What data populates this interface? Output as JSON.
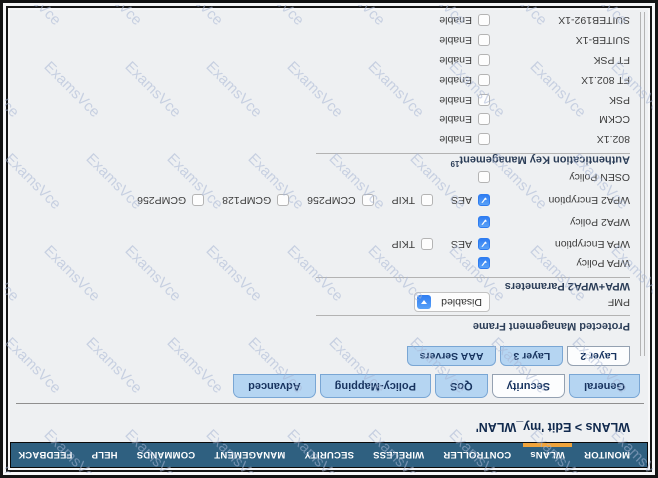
{
  "watermark": {
    "text": "ExamsVce"
  },
  "orientation_note": "rotated-180",
  "colors": {
    "nav_bg": "#2f6080",
    "active_item_indicator": "#f0a43c",
    "tab_bg": "#b5d5f2",
    "accent_blue": "#2f7df2"
  },
  "nav": {
    "items": [
      {
        "label": "MONITOR",
        "active": false
      },
      {
        "label": "WLANs",
        "active": true
      },
      {
        "label": "CONTROLLER",
        "active": false
      },
      {
        "label": "WIRELESS",
        "active": false
      },
      {
        "label": "SECURITY",
        "active": false
      },
      {
        "label": "MANAGEMENT",
        "active": false
      },
      {
        "label": "COMMANDS",
        "active": false
      },
      {
        "label": "HELP",
        "active": false
      },
      {
        "label": "FEEDBACK",
        "active": false
      }
    ]
  },
  "page": {
    "heading": "WLANs > Edit  'my_WLAN'"
  },
  "tabs": {
    "items": [
      {
        "label": "General",
        "active": false
      },
      {
        "label": "Security",
        "active": true
      },
      {
        "label": "QoS",
        "active": false
      },
      {
        "label": "Policy-Mapping",
        "active": false
      },
      {
        "label": "Advanced",
        "active": false
      }
    ]
  },
  "security_subtabs": {
    "items": [
      {
        "label": "Layer 2",
        "active": true
      },
      {
        "label": "Layer 3",
        "active": false
      },
      {
        "label": "AAA Servers",
        "active": false
      }
    ]
  },
  "pmf_section": {
    "title": "Protected Management Frame",
    "pmf_label": "PMF",
    "pmf_value": "Disabled"
  },
  "wpa_section": {
    "title": "WPA+WPA2 Parameters",
    "wpa_policy": {
      "label": "WPA Policy",
      "checked": true
    },
    "wpa_encryption": {
      "label": "WPA Encryption",
      "options": [
        {
          "label": "AES",
          "checked": true
        },
        {
          "label": "TKIP",
          "checked": false
        }
      ]
    },
    "wpa2_policy": {
      "label": "WPA2 Policy",
      "checked": true
    },
    "wpa2_encryption": {
      "label": "WPA2 Encryption",
      "options": [
        {
          "label": "AES",
          "checked": true
        },
        {
          "label": "TKIP",
          "checked": false
        },
        {
          "label": "CCMP256",
          "checked": false
        },
        {
          "label": "GCMP128",
          "checked": false
        },
        {
          "label": "GCMP256",
          "checked": false
        }
      ]
    },
    "osen_policy": {
      "label": "OSEN Policy",
      "checked": false
    }
  },
  "akm_section": {
    "title": "Authentication Key Management",
    "footnote": "19",
    "rows": [
      {
        "label": "802.1X",
        "enable_label": "Enable",
        "checked": false
      },
      {
        "label": "CCKM",
        "enable_label": "Enable",
        "checked": false
      },
      {
        "label": "PSK",
        "enable_label": "Enable",
        "checked": false
      },
      {
        "label": "FT 802.1X",
        "enable_label": "Enable",
        "checked": false
      },
      {
        "label": "FT PSK",
        "enable_label": "Enable",
        "checked": false
      },
      {
        "label": "SUITEB-1X",
        "enable_label": "Enable",
        "checked": false
      },
      {
        "label": "SUITEB192-1X",
        "enable_label": "Enable",
        "checked": false
      }
    ]
  }
}
